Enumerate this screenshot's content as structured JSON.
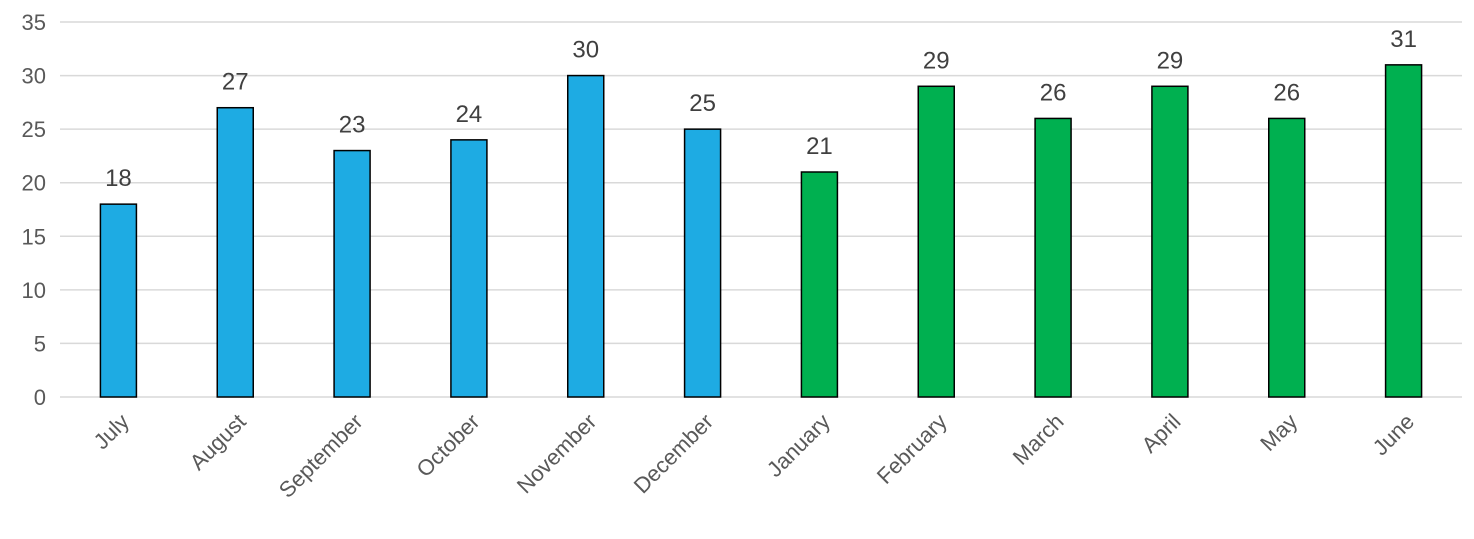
{
  "chart_data": {
    "type": "bar",
    "categories": [
      "July",
      "August",
      "September",
      "October",
      "November",
      "December",
      "January",
      "February",
      "March",
      "April",
      "May",
      "June"
    ],
    "values": [
      18,
      27,
      23,
      24,
      30,
      25,
      21,
      29,
      26,
      29,
      26,
      31
    ],
    "bar_colors": [
      "#1eabe3",
      "#1eabe3",
      "#1eabe3",
      "#1eabe3",
      "#1eabe3",
      "#1eabe3",
      "#00b050",
      "#00b050",
      "#00b050",
      "#00b050",
      "#00b050",
      "#00b050"
    ],
    "title": "",
    "xlabel": "",
    "ylabel": "",
    "ylim": [
      0,
      35
    ],
    "yticks": [
      0,
      5,
      10,
      15,
      20,
      25,
      30,
      35
    ],
    "grid": true,
    "data_labels": true,
    "legend": "none"
  }
}
